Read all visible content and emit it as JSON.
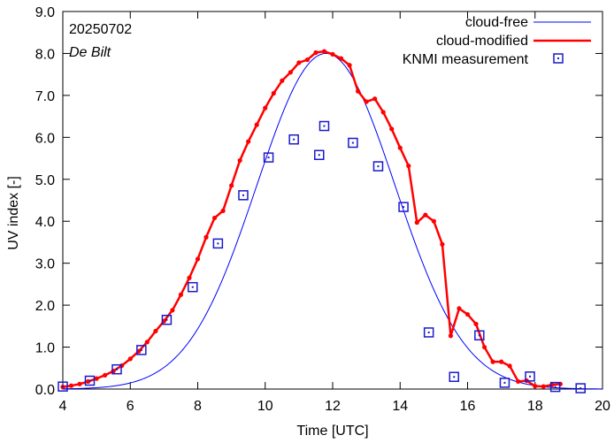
{
  "chart_data": {
    "type": "line",
    "title": "",
    "xlabel": "Time  [UTC]",
    "ylabel": "UV index  [-]",
    "xlim": [
      4,
      20
    ],
    "ylim": [
      0,
      9
    ],
    "x_ticks": [
      4,
      6,
      8,
      10,
      12,
      14,
      16,
      18,
      20
    ],
    "x_tick_labels": [
      "4",
      "6",
      "8",
      "10",
      "12",
      "14",
      "16",
      "18",
      "20"
    ],
    "y_ticks": [
      0,
      1,
      2,
      3,
      4,
      5,
      6,
      7,
      8,
      9
    ],
    "y_tick_labels": [
      "0.0",
      "1.0",
      "2.0",
      "3.0",
      "4.0",
      "5.0",
      "6.0",
      "7.0",
      "8.0",
      "9.0"
    ],
    "annotations": {
      "date": "20250702",
      "location": "De Bilt"
    },
    "legend_position": "top-right",
    "colors": {
      "cloud_free": "#0000ff",
      "cloud_modified": "#ff0000",
      "knmi": "#1a1acc"
    },
    "series": [
      {
        "name": "cloud-free",
        "style": "thin-line",
        "peak_x": 11.8,
        "peak_y": 8.0,
        "sigma": 2.05
      },
      {
        "name": "cloud-modified",
        "style": "thick-line-markers",
        "x": [
          4.0,
          4.25,
          4.5,
          4.75,
          5.0,
          5.25,
          5.5,
          5.75,
          6.0,
          6.25,
          6.5,
          6.75,
          7.0,
          7.25,
          7.5,
          7.75,
          8.0,
          8.25,
          8.5,
          8.75,
          9.0,
          9.25,
          9.5,
          9.75,
          10.0,
          10.25,
          10.5,
          10.75,
          11.0,
          11.25,
          11.5,
          11.75,
          12.0,
          12.25,
          12.5,
          12.75,
          13.0,
          13.25,
          13.5,
          13.75,
          14.0,
          14.25,
          14.5,
          14.75,
          15.0,
          15.25,
          15.5,
          15.75,
          16.0,
          16.25,
          16.5,
          16.75,
          17.0,
          17.25,
          17.5,
          17.75,
          18.0,
          18.25,
          18.5,
          18.75
        ],
        "y": [
          0.05,
          0.08,
          0.12,
          0.18,
          0.25,
          0.33,
          0.43,
          0.56,
          0.72,
          0.9,
          1.12,
          1.38,
          1.62,
          1.88,
          2.25,
          2.65,
          3.1,
          3.62,
          4.08,
          4.25,
          4.85,
          5.45,
          5.9,
          6.3,
          6.7,
          7.05,
          7.35,
          7.55,
          7.78,
          7.85,
          8.02,
          8.05,
          7.98,
          7.88,
          7.72,
          7.1,
          6.85,
          6.92,
          6.6,
          6.2,
          5.75,
          5.32,
          3.97,
          4.15,
          4.0,
          3.45,
          1.27,
          1.92,
          1.78,
          1.55,
          1.0,
          0.65,
          0.65,
          0.55,
          0.18,
          0.2,
          0.07,
          0.06,
          0.1,
          0.12
        ]
      },
      {
        "name": "KNMI measurement",
        "style": "open-square",
        "x": [
          4.0,
          4.8,
          5.6,
          6.33,
          7.08,
          7.85,
          8.6,
          9.35,
          10.1,
          10.85,
          11.6,
          11.75,
          12.6,
          13.35,
          14.1,
          14.85,
          15.6,
          16.35,
          17.1,
          17.85,
          18.6,
          19.35
        ],
        "y": [
          0.06,
          0.2,
          0.47,
          0.93,
          1.65,
          2.43,
          3.47,
          4.62,
          5.52,
          5.95,
          5.58,
          6.27,
          5.87,
          5.31,
          4.34,
          1.35,
          0.29,
          1.28,
          0.15,
          0.3,
          0.05,
          0.02
        ]
      }
    ]
  }
}
